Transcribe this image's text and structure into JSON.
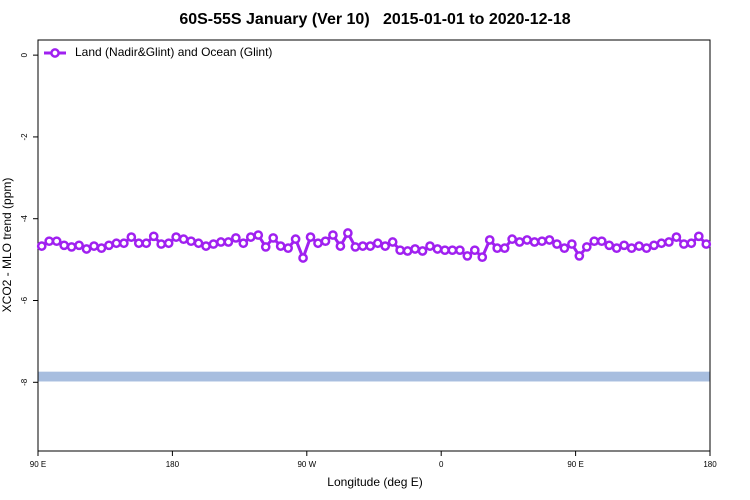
{
  "chart_data": {
    "type": "line",
    "title": "60S-55S January (Ver 10)   2015-01-01 to 2020-12-18",
    "xlabel": "Longitude (deg E)",
    "ylabel": "XCO2 - MLO trend (ppm)",
    "xlim": [
      90,
      540
    ],
    "xticks": [
      {
        "value": 90,
        "label": "90 E"
      },
      180,
      {
        "value": 270,
        "label": "90 W"
      },
      {
        "value": 360,
        "label": "0"
      },
      {
        "value": 450,
        "label": "90 E"
      },
      {
        "value": 540,
        "label": "180"
      }
    ],
    "ylim": [
      -9.68,
      0.37
    ],
    "yticks": [
      0,
      -2,
      -4,
      -6,
      -8
    ],
    "legend": "topleft",
    "band": {
      "ylim": [
        -7.98,
        -7.74
      ],
      "color": "#a8bedf"
    },
    "x": [
      92.5,
      97.5,
      102.5,
      107.5,
      112.5,
      117.5,
      122.5,
      127.5,
      132.5,
      137.5,
      142.5,
      147.5,
      152.5,
      157.5,
      162.5,
      167.5,
      172.5,
      177.5,
      182.5,
      187.5,
      192.5,
      197.5,
      202.5,
      207.5,
      212.5,
      217.5,
      222.5,
      227.5,
      232.5,
      237.5,
      242.5,
      247.5,
      252.5,
      257.5,
      262.5,
      267.5,
      272.5,
      277.5,
      282.5,
      287.5,
      292.5,
      297.5,
      302.5,
      307.5,
      312.5,
      317.5,
      322.5,
      327.5,
      332.5,
      337.5,
      342.5,
      347.5,
      352.5,
      357.5,
      362.5,
      367.5,
      372.5,
      377.5,
      382.5,
      387.5,
      392.5,
      397.5,
      402.5,
      407.5,
      412.5,
      417.5,
      422.5,
      427.5,
      432.5,
      437.5,
      442.5,
      447.5,
      452.5,
      457.5,
      462.5,
      467.5,
      472.5,
      477.5,
      482.5,
      487.5,
      492.5,
      497.5,
      502.5,
      507.5,
      512.5,
      517.5,
      522.5,
      527.5,
      532.5,
      537.5
    ],
    "series": [
      {
        "name": "Land (Nadir&Glint) and Ocean (Glint)",
        "color": "#a020f0",
        "values": [
          -4.67,
          -4.55,
          -4.55,
          -4.65,
          -4.69,
          -4.65,
          -4.74,
          -4.67,
          -4.72,
          -4.65,
          -4.6,
          -4.6,
          -4.45,
          -4.6,
          -4.6,
          -4.43,
          -4.62,
          -4.6,
          -4.45,
          -4.5,
          -4.55,
          -4.6,
          -4.67,
          -4.62,
          -4.57,
          -4.57,
          -4.47,
          -4.6,
          -4.45,
          -4.4,
          -4.69,
          -4.47,
          -4.67,
          -4.72,
          -4.5,
          -4.96,
          -4.45,
          -4.6,
          -4.55,
          -4.4,
          -4.67,
          -4.35,
          -4.69,
          -4.67,
          -4.67,
          -4.6,
          -4.67,
          -4.57,
          -4.77,
          -4.79,
          -4.74,
          -4.79,
          -4.67,
          -4.74,
          -4.77,
          -4.77,
          -4.77,
          -4.91,
          -4.77,
          -4.94,
          -4.52,
          -4.72,
          -4.72,
          -4.5,
          -4.57,
          -4.52,
          -4.57,
          -4.55,
          -4.52,
          -4.62,
          -4.72,
          -4.62,
          -4.91,
          -4.69,
          -4.55,
          -4.55,
          -4.65,
          -4.72,
          -4.65,
          -4.72,
          -4.67,
          -4.72,
          -4.65,
          -4.6,
          -4.57,
          -4.45,
          -4.62,
          -4.6,
          -4.43,
          -4.62
        ]
      }
    ]
  }
}
